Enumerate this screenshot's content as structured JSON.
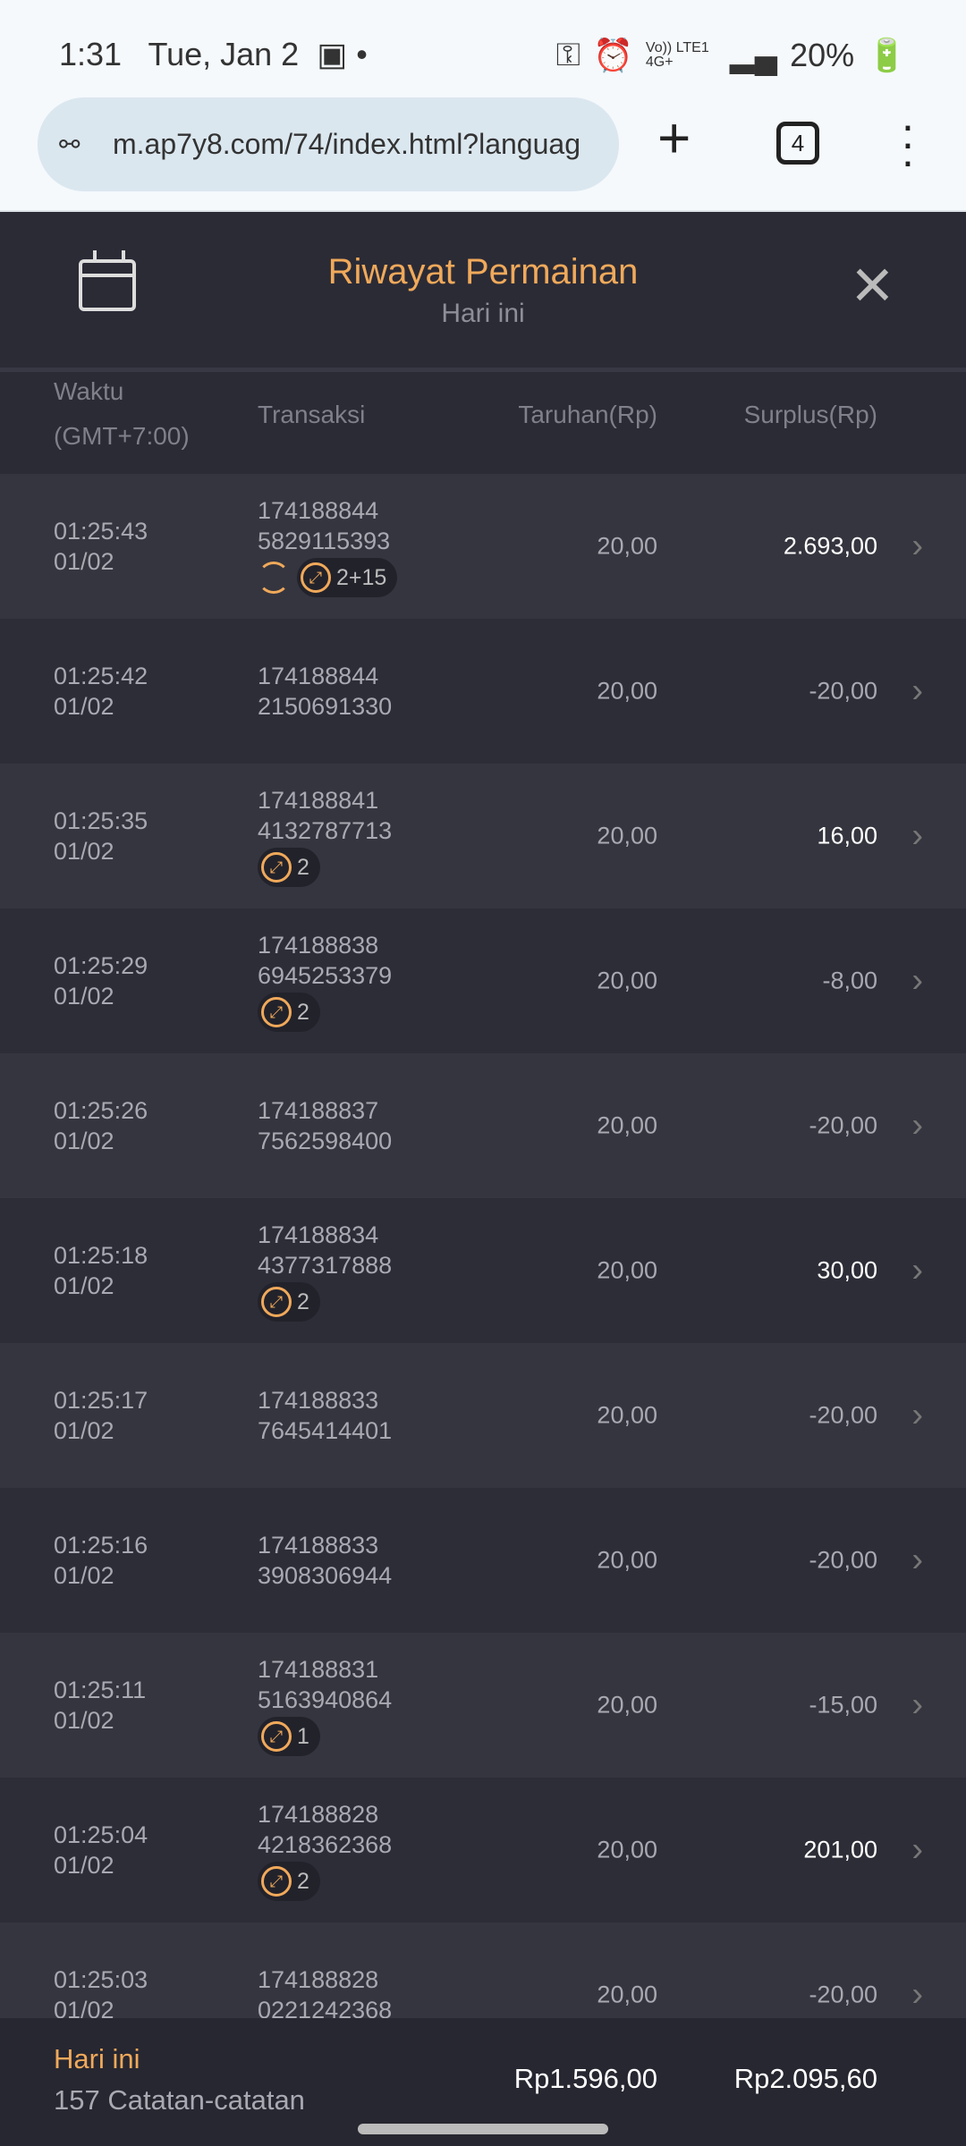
{
  "status": {
    "time": "1:31",
    "date": "Tue, Jan 2",
    "network": "Vo)) LTE1 4G+",
    "battery": "20%"
  },
  "browser": {
    "url": "m.ap7y8.com/74/index.html?languag",
    "tab_count": "4"
  },
  "header": {
    "title": "Riwayat Permainan",
    "subtitle": "Hari ini"
  },
  "columns": {
    "time": "Waktu",
    "timezone": "(GMT+7:00)",
    "transaction": "Transaksi",
    "bet": "Taruhan(Rp)",
    "surplus": "Surplus(Rp)"
  },
  "rows": [
    {
      "time": "01:25:43",
      "date": "01/02",
      "id1": "174188844",
      "id2": "5829115393",
      "bet": "20,00",
      "surplus": "2.693,00",
      "positive": true,
      "spin": true,
      "badge": "2+15"
    },
    {
      "time": "01:25:42",
      "date": "01/02",
      "id1": "174188844",
      "id2": "2150691330",
      "bet": "20,00",
      "surplus": "-20,00",
      "positive": false,
      "spin": false,
      "badge": null
    },
    {
      "time": "01:25:35",
      "date": "01/02",
      "id1": "174188841",
      "id2": "4132787713",
      "bet": "20,00",
      "surplus": "16,00",
      "positive": true,
      "spin": false,
      "badge": "2"
    },
    {
      "time": "01:25:29",
      "date": "01/02",
      "id1": "174188838",
      "id2": "6945253379",
      "bet": "20,00",
      "surplus": "-8,00",
      "positive": false,
      "spin": false,
      "badge": "2"
    },
    {
      "time": "01:25:26",
      "date": "01/02",
      "id1": "174188837",
      "id2": "7562598400",
      "bet": "20,00",
      "surplus": "-20,00",
      "positive": false,
      "spin": false,
      "badge": null
    },
    {
      "time": "01:25:18",
      "date": "01/02",
      "id1": "174188834",
      "id2": "4377317888",
      "bet": "20,00",
      "surplus": "30,00",
      "positive": true,
      "spin": false,
      "badge": "2"
    },
    {
      "time": "01:25:17",
      "date": "01/02",
      "id1": "174188833",
      "id2": "7645414401",
      "bet": "20,00",
      "surplus": "-20,00",
      "positive": false,
      "spin": false,
      "badge": null
    },
    {
      "time": "01:25:16",
      "date": "01/02",
      "id1": "174188833",
      "id2": "3908306944",
      "bet": "20,00",
      "surplus": "-20,00",
      "positive": false,
      "spin": false,
      "badge": null
    },
    {
      "time": "01:25:11",
      "date": "01/02",
      "id1": "174188831",
      "id2": "5163940864",
      "bet": "20,00",
      "surplus": "-15,00",
      "positive": false,
      "spin": false,
      "badge": "1"
    },
    {
      "time": "01:25:04",
      "date": "01/02",
      "id1": "174188828",
      "id2": "4218362368",
      "bet": "20,00",
      "surplus": "201,00",
      "positive": true,
      "spin": false,
      "badge": "2"
    },
    {
      "time": "01:25:03",
      "date": "01/02",
      "id1": "174188828",
      "id2": "0221242368",
      "bet": "20,00",
      "surplus": "-20,00",
      "positive": false,
      "spin": false,
      "badge": null
    }
  ],
  "footer": {
    "period": "Hari ini",
    "records": "157 Catatan-catatan",
    "total_bet": "Rp1.596,00",
    "total_surplus": "Rp2.095,60"
  },
  "colors": {
    "accent": "#f0a95a",
    "background": "#2b2b36"
  }
}
